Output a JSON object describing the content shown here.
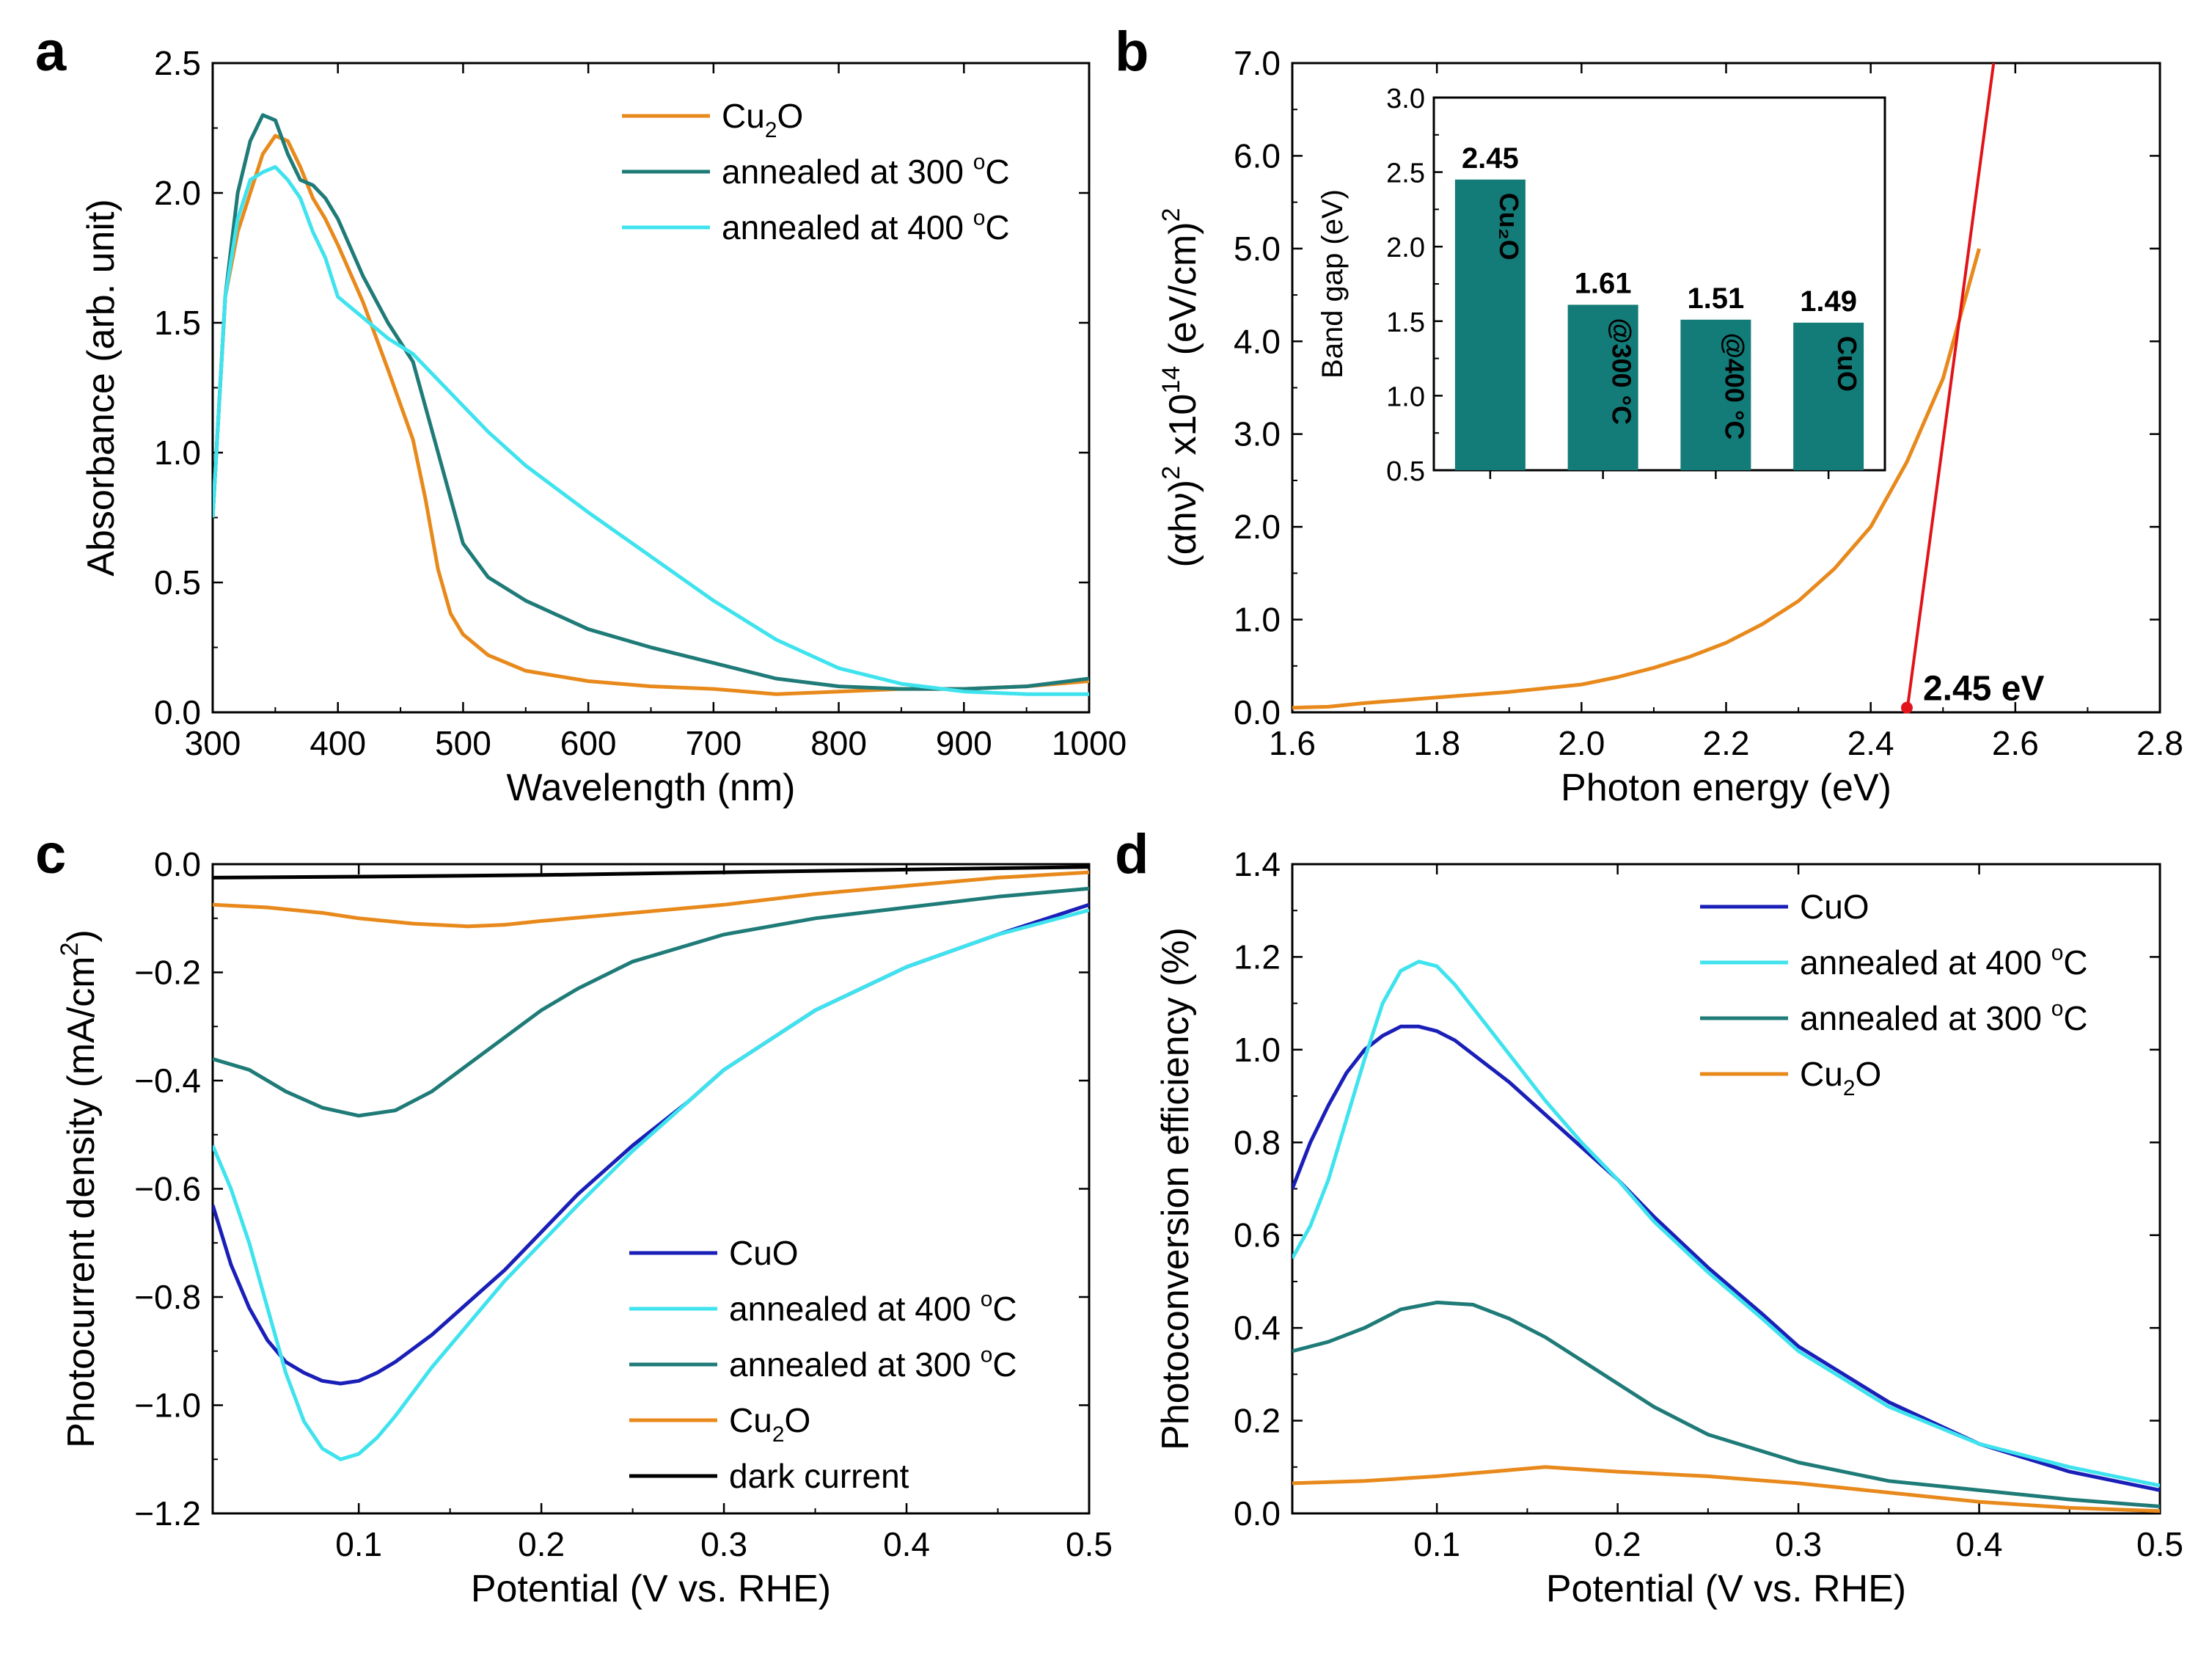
{
  "colors": {
    "orange": "#E8891C",
    "teal": "#1F7B78",
    "cyan": "#3FE3EE",
    "navy": "#1A1FB8",
    "black": "#000000",
    "red": "#E0141A",
    "bar": "#137B78",
    "annotation": "#F0A05A"
  },
  "chart_data": [
    {
      "panel": "a",
      "type": "line",
      "xlabel": "Wavelength (nm)",
      "ylabel": "Absorbance (arb. unit)",
      "xlim": [
        300,
        1000
      ],
      "ylim": [
        0.0,
        2.5
      ],
      "xticks": [
        300,
        400,
        500,
        600,
        700,
        800,
        900,
        1000
      ],
      "yticks": [
        0.0,
        0.5,
        1.0,
        1.5,
        2.0,
        2.5
      ],
      "xtick_labels": [
        "300",
        "400",
        "500",
        "600",
        "700",
        "800",
        "900",
        "1000"
      ],
      "ytick_labels": [
        "0.0",
        "0.5",
        "1.0",
        "1.5",
        "2.0",
        "2.5"
      ],
      "legend_position": "top-right",
      "series": [
        {
          "name": "Cu2O",
          "label_main": "Cu",
          "label_sub": "2",
          "label_tail": "O",
          "color": "orange",
          "x": [
            300,
            310,
            320,
            330,
            340,
            350,
            360,
            370,
            380,
            390,
            400,
            420,
            440,
            460,
            470,
            480,
            490,
            500,
            520,
            550,
            600,
            650,
            700,
            750,
            800,
            850,
            900,
            950,
            1000
          ],
          "y": [
            0.75,
            1.6,
            1.85,
            2.0,
            2.15,
            2.22,
            2.2,
            2.1,
            1.98,
            1.9,
            1.8,
            1.58,
            1.32,
            1.05,
            0.82,
            0.55,
            0.38,
            0.3,
            0.22,
            0.16,
            0.12,
            0.1,
            0.09,
            0.07,
            0.08,
            0.09,
            0.09,
            0.1,
            0.12
          ]
        },
        {
          "name": "annealed at 300 °C",
          "label_main": "annealed at 300 ",
          "label_sup": "o",
          "label_tail": "C",
          "color": "teal",
          "x": [
            300,
            310,
            320,
            330,
            340,
            350,
            360,
            370,
            380,
            390,
            400,
            420,
            440,
            460,
            480,
            500,
            520,
            550,
            600,
            650,
            700,
            750,
            800,
            850,
            900,
            950,
            1000
          ],
          "y": [
            0.75,
            1.6,
            2.0,
            2.2,
            2.3,
            2.28,
            2.15,
            2.05,
            2.03,
            1.98,
            1.9,
            1.68,
            1.5,
            1.35,
            1.0,
            0.65,
            0.52,
            0.43,
            0.32,
            0.25,
            0.19,
            0.13,
            0.1,
            0.09,
            0.09,
            0.1,
            0.13
          ]
        },
        {
          "name": "annealed at 400 °C",
          "label_main": "annealed at 400 ",
          "label_sup": "o",
          "label_tail": "C",
          "color": "cyan",
          "x": [
            300,
            310,
            320,
            330,
            340,
            350,
            360,
            370,
            380,
            390,
            400,
            420,
            440,
            460,
            480,
            500,
            520,
            550,
            600,
            650,
            700,
            750,
            800,
            850,
            900,
            950,
            1000
          ],
          "y": [
            0.75,
            1.6,
            1.9,
            2.05,
            2.08,
            2.1,
            2.05,
            1.98,
            1.85,
            1.75,
            1.6,
            1.52,
            1.44,
            1.38,
            1.28,
            1.18,
            1.08,
            0.95,
            0.77,
            0.6,
            0.43,
            0.28,
            0.17,
            0.11,
            0.08,
            0.07,
            0.07
          ]
        }
      ]
    },
    {
      "panel": "b",
      "type": "line",
      "xlabel": "Photon energy (eV)",
      "ylabel_main": "(αhν)",
      "ylabel_sup1": "2",
      "ylabel_mid": " x10",
      "ylabel_sup2": "14",
      "ylabel_tail": " (eV/cm)",
      "ylabel_sup3": "2",
      "xlim": [
        1.6,
        2.8
      ],
      "ylim": [
        0.0,
        7.0
      ],
      "xticks": [
        1.6,
        1.8,
        2.0,
        2.2,
        2.4,
        2.6,
        2.8
      ],
      "yticks": [
        0.0,
        1.0,
        2.0,
        3.0,
        4.0,
        5.0,
        6.0,
        7.0
      ],
      "xtick_labels": [
        "1.6",
        "1.8",
        "2.0",
        "2.2",
        "2.4",
        "2.6",
        "2.8"
      ],
      "ytick_labels": [
        "0.0",
        "1.0",
        "2.0",
        "3.0",
        "4.0",
        "5.0",
        "6.0",
        "7.0"
      ],
      "series": [
        {
          "name": "Cu2O Tauc",
          "color": "orange",
          "x": [
            1.6,
            1.65,
            1.7,
            1.75,
            1.8,
            1.85,
            1.9,
            1.95,
            2.0,
            2.05,
            2.1,
            2.15,
            2.2,
            2.25,
            2.3,
            2.35,
            2.4,
            2.45,
            2.5,
            2.55
          ],
          "y": [
            0.05,
            0.06,
            0.1,
            0.13,
            0.16,
            0.19,
            0.22,
            0.26,
            0.3,
            0.38,
            0.48,
            0.6,
            0.75,
            0.95,
            1.2,
            1.55,
            2.0,
            2.7,
            3.6,
            5.0
          ]
        }
      ],
      "fit_line": {
        "x": [
          2.45,
          2.57
        ],
        "y": [
          0.0,
          7.0
        ],
        "color": "red"
      },
      "annotation": {
        "text": "2.45 eV",
        "x": 2.45,
        "y": 0.05
      },
      "inset": {
        "type": "bar",
        "ylabel": "Band gap  (eV)",
        "ylim": [
          0.5,
          3.0
        ],
        "yticks": [
          0.5,
          1.0,
          1.5,
          2.0,
          2.5,
          3.0
        ],
        "ytick_labels": [
          "0.5",
          "1.0",
          "1.5",
          "2.0",
          "2.5",
          "3.0"
        ],
        "categories": [
          "Cu₂O",
          "@300 °C",
          "@400 °C",
          "CuO"
        ],
        "values": [
          2.45,
          1.61,
          1.51,
          1.49
        ],
        "value_labels": [
          "2.45",
          "1.61",
          "1.51",
          "1.49"
        ]
      }
    },
    {
      "panel": "c",
      "type": "line",
      "xlabel": "Potential (V vs. RHE)",
      "ylabel_main": "Photocurrent density (mA/cm",
      "ylabel_sup": "2",
      "ylabel_tail": ")",
      "xlim": [
        0.02,
        0.5
      ],
      "ylim": [
        -1.2,
        0.0
      ],
      "xticks": [
        0.1,
        0.2,
        0.3,
        0.4,
        0.5
      ],
      "yticks": [
        -1.2,
        -1.0,
        -0.8,
        -0.6,
        -0.4,
        -0.2,
        0.0
      ],
      "xtick_labels": [
        "0.1",
        "0.2",
        "0.3",
        "0.4",
        "0.5"
      ],
      "ytick_labels": [
        "−1.2",
        "−1.0",
        "−0.8",
        "−0.6",
        "−0.4",
        "−0.2",
        "0.0"
      ],
      "legend_position": "bottom-center",
      "series": [
        {
          "name": "CuO",
          "label_main": "CuO",
          "color": "navy",
          "x": [
            0.02,
            0.03,
            0.04,
            0.05,
            0.06,
            0.07,
            0.08,
            0.09,
            0.1,
            0.11,
            0.12,
            0.14,
            0.16,
            0.18,
            0.2,
            0.22,
            0.25,
            0.28,
            0.3,
            0.35,
            0.4,
            0.45,
            0.5
          ],
          "y": [
            -0.63,
            -0.74,
            -0.82,
            -0.88,
            -0.92,
            -0.94,
            -0.955,
            -0.96,
            -0.955,
            -0.94,
            -0.92,
            -0.87,
            -0.81,
            -0.75,
            -0.68,
            -0.61,
            -0.52,
            -0.44,
            -0.38,
            -0.27,
            -0.19,
            -0.13,
            -0.075
          ]
        },
        {
          "name": "annealed at 400 °C",
          "label_main": "annealed at 400 ",
          "label_sup": "o",
          "label_tail": "C",
          "color": "cyan",
          "x": [
            0.02,
            0.03,
            0.04,
            0.05,
            0.06,
            0.07,
            0.08,
            0.09,
            0.1,
            0.11,
            0.12,
            0.14,
            0.16,
            0.18,
            0.2,
            0.22,
            0.25,
            0.28,
            0.3,
            0.35,
            0.4,
            0.45,
            0.5
          ],
          "y": [
            -0.52,
            -0.6,
            -0.7,
            -0.82,
            -0.94,
            -1.03,
            -1.08,
            -1.1,
            -1.09,
            -1.06,
            -1.02,
            -0.93,
            -0.85,
            -0.77,
            -0.7,
            -0.63,
            -0.53,
            -0.44,
            -0.38,
            -0.27,
            -0.19,
            -0.13,
            -0.085
          ]
        },
        {
          "name": "annealed at 300 °C",
          "label_main": "annealed at 300 ",
          "label_sup": "o",
          "label_tail": "C",
          "color": "teal",
          "x": [
            0.02,
            0.04,
            0.06,
            0.08,
            0.1,
            0.12,
            0.14,
            0.16,
            0.18,
            0.2,
            0.22,
            0.25,
            0.3,
            0.35,
            0.4,
            0.45,
            0.5
          ],
          "y": [
            -0.36,
            -0.38,
            -0.42,
            -0.45,
            -0.465,
            -0.455,
            -0.42,
            -0.37,
            -0.32,
            -0.27,
            -0.23,
            -0.18,
            -0.13,
            -0.1,
            -0.08,
            -0.06,
            -0.045
          ]
        },
        {
          "name": "Cu2O",
          "label_main": "Cu",
          "label_sub": "2",
          "label_tail": "O",
          "color": "orange",
          "x": [
            0.02,
            0.05,
            0.08,
            0.1,
            0.13,
            0.16,
            0.18,
            0.2,
            0.25,
            0.3,
            0.35,
            0.4,
            0.45,
            0.5
          ],
          "y": [
            -0.075,
            -0.08,
            -0.09,
            -0.1,
            -0.11,
            -0.115,
            -0.112,
            -0.105,
            -0.09,
            -0.075,
            -0.055,
            -0.04,
            -0.025,
            -0.015
          ]
        },
        {
          "name": "dark current",
          "label_main": "dark current",
          "color": "black",
          "x": [
            0.02,
            0.1,
            0.2,
            0.3,
            0.4,
            0.5
          ],
          "y": [
            -0.025,
            -0.023,
            -0.02,
            -0.015,
            -0.01,
            -0.005
          ]
        }
      ]
    },
    {
      "panel": "d",
      "type": "line",
      "xlabel": "Potential (V vs. RHE)",
      "ylabel": "Photoconversion efficiency (%)",
      "xlim": [
        0.02,
        0.5
      ],
      "ylim": [
        0.0,
        1.4
      ],
      "xticks": [
        0.1,
        0.2,
        0.3,
        0.4,
        0.5
      ],
      "yticks": [
        0.0,
        0.2,
        0.4,
        0.6,
        0.8,
        1.0,
        1.2,
        1.4
      ],
      "xtick_labels": [
        "0.1",
        "0.2",
        "0.3",
        "0.4",
        "0.5"
      ],
      "ytick_labels": [
        "0.0",
        "0.2",
        "0.4",
        "0.6",
        "0.8",
        "1.0",
        "1.2",
        "1.4"
      ],
      "legend_position": "top-right",
      "series": [
        {
          "name": "CuO",
          "label_main": "CuO",
          "color": "navy",
          "x": [
            0.02,
            0.03,
            0.04,
            0.05,
            0.06,
            0.07,
            0.08,
            0.09,
            0.1,
            0.11,
            0.12,
            0.14,
            0.16,
            0.18,
            0.2,
            0.22,
            0.25,
            0.28,
            0.3,
            0.35,
            0.4,
            0.45,
            0.5
          ],
          "y": [
            0.7,
            0.8,
            0.88,
            0.95,
            1.0,
            1.03,
            1.05,
            1.05,
            1.04,
            1.02,
            0.99,
            0.93,
            0.86,
            0.79,
            0.72,
            0.64,
            0.53,
            0.43,
            0.36,
            0.24,
            0.15,
            0.09,
            0.05
          ]
        },
        {
          "name": "annealed at 400 °C",
          "label_main": "annealed at 400 ",
          "label_sup": "o",
          "label_tail": "C",
          "color": "cyan",
          "x": [
            0.02,
            0.03,
            0.04,
            0.05,
            0.06,
            0.07,
            0.08,
            0.09,
            0.1,
            0.11,
            0.12,
            0.14,
            0.16,
            0.18,
            0.2,
            0.22,
            0.25,
            0.28,
            0.3,
            0.35,
            0.4,
            0.45,
            0.5
          ],
          "y": [
            0.55,
            0.62,
            0.72,
            0.85,
            0.98,
            1.1,
            1.17,
            1.19,
            1.18,
            1.14,
            1.09,
            0.99,
            0.89,
            0.8,
            0.72,
            0.63,
            0.52,
            0.42,
            0.35,
            0.23,
            0.15,
            0.1,
            0.06
          ]
        },
        {
          "name": "annealed at 300 °C",
          "label_main": "annealed at 300 ",
          "label_sup": "o",
          "label_tail": "C",
          "color": "teal",
          "x": [
            0.02,
            0.04,
            0.06,
            0.08,
            0.1,
            0.12,
            0.14,
            0.16,
            0.18,
            0.2,
            0.22,
            0.25,
            0.3,
            0.35,
            0.4,
            0.45,
            0.5
          ],
          "y": [
            0.35,
            0.37,
            0.4,
            0.44,
            0.455,
            0.45,
            0.42,
            0.38,
            0.33,
            0.28,
            0.23,
            0.17,
            0.11,
            0.07,
            0.05,
            0.03,
            0.015
          ]
        },
        {
          "name": "Cu2O",
          "label_main": "Cu",
          "label_sub": "2",
          "label_tail": "O",
          "color": "orange",
          "x": [
            0.02,
            0.06,
            0.1,
            0.13,
            0.16,
            0.2,
            0.25,
            0.3,
            0.35,
            0.4,
            0.45,
            0.5
          ],
          "y": [
            0.065,
            0.07,
            0.08,
            0.09,
            0.1,
            0.09,
            0.08,
            0.065,
            0.045,
            0.025,
            0.012,
            0.005
          ]
        }
      ]
    }
  ],
  "panel_labels": [
    "a",
    "b",
    "c",
    "d"
  ]
}
